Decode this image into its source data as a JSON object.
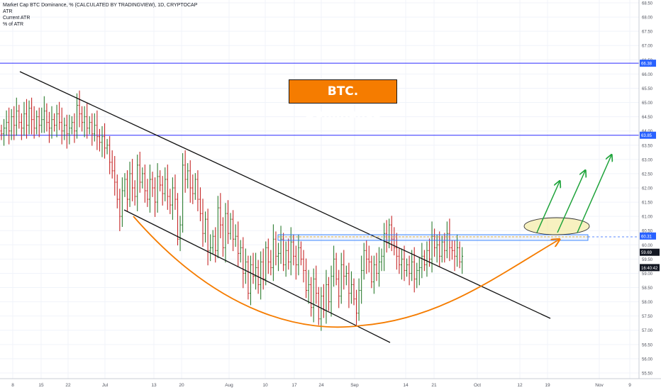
{
  "chart_data": {
    "type": "candlestick",
    "title": "Market Cap BTC Dominance, % (CALCULATED BY TRADINGVIEW), 1D, CRYPTOCAP",
    "legend": [
      "ATR",
      "Current ATR",
      "% of ATR"
    ],
    "annotation": "BTC. Dominance",
    "x_tick_labels": [
      "8",
      "15",
      "22",
      "Jul",
      "13",
      "20",
      "Aug",
      "10",
      "17",
      "24",
      "Sep",
      "14",
      "21",
      "Oct",
      "12",
      "19",
      "Nov",
      "9"
    ],
    "y_tick_labels": [
      "55.50",
      "56.00",
      "56.50",
      "57.00",
      "57.50",
      "58.00",
      "58.50",
      "59.00",
      "59.50",
      "60.00",
      "60.50",
      "61.00",
      "61.50",
      "62.00",
      "62.50",
      "63.00",
      "63.50",
      "64.00",
      "64.50",
      "65.00",
      "65.50",
      "66.00",
      "66.50",
      "67.00",
      "67.50",
      "68.00",
      "68.50"
    ],
    "ylim": [
      55.3,
      68.6
    ],
    "horizontal_levels": [
      {
        "value": 66.38,
        "label": "66.38",
        "color": "#2a2aff"
      },
      {
        "value": 63.85,
        "label": "63.85",
        "color": "#2a2aff"
      },
      {
        "value": 60.31,
        "label": "60.31",
        "color": "#2962ff"
      }
    ],
    "price_labels": [
      {
        "value": 59.69,
        "label": "59.69"
      },
      {
        "value": 59.35,
        "label": "16:40:42"
      }
    ],
    "candle_closes": [
      63.9,
      64.1,
      64.3,
      64.0,
      64.5,
      64.2,
      64.7,
      64.3,
      64.1,
      64.6,
      64.2,
      64.8,
      64.4,
      64.1,
      64.5,
      64.2,
      64.4,
      64.7,
      64.3,
      64.1,
      64.4,
      64.2,
      64.6,
      64.3,
      64.0,
      64.2,
      63.9,
      64.1,
      64.3,
      64.0,
      64.9,
      64.6,
      64.3,
      64.5,
      64.1,
      64.3,
      63.9,
      64.2,
      63.8,
      63.6,
      63.8,
      63.4,
      63.5,
      62.9,
      62.6,
      62.2,
      61.6,
      61.0,
      61.9,
      62.3,
      61.6,
      62.5,
      62.0,
      61.7,
      62.8,
      62.2,
      62.5,
      61.9,
      61.6,
      62.3,
      62.0,
      61.5,
      62.4,
      62.1,
      61.8,
      62.3,
      61.7,
      61.4,
      62.0,
      61.6,
      60.2,
      60.7,
      62.8,
      62.3,
      62.6,
      62.0,
      61.8,
      62.3,
      61.6,
      61.1,
      60.4,
      60.9,
      59.8,
      59.9,
      60.3,
      59.8,
      61.3,
      60.7,
      59.9,
      61.1,
      60.4,
      60.9,
      60.2,
      60.3,
      59.7,
      59.9,
      59.0,
      59.4,
      58.3,
      59.3,
      58.9,
      59.2,
      58.6,
      59.4,
      58.8,
      59.9,
      59.4,
      59.2,
      60.2,
      59.6,
      59.7,
      60.2,
      59.3,
      59.8,
      59.4,
      60.1,
      59.6,
      59.3,
      59.9,
      59.5,
      59.1,
      58.4,
      58.6,
      57.8,
      58.8,
      58.3,
      57.4,
      58.2,
      57.7,
      58.6,
      58.0,
      58.9,
      59.5,
      58.8,
      58.2,
      59.3,
      58.9,
      59.0,
      58.3,
      58.6,
      58.1,
      57.6,
      58.4,
      59.1,
      59.8,
      59.5,
      59.4,
      58.7,
      59.3,
      59.0,
      59.4,
      59.6,
      60.4,
      60.1,
      60.7,
      60.2,
      59.9,
      59.6,
      59.3,
      59.5,
      59.1,
      59.3,
      59.0,
      59.4,
      58.8,
      59.1,
      59.2,
      59.6,
      59.3,
      59.8,
      59.5,
      60.3,
      59.9,
      60.0,
      59.6,
      60.1,
      59.8,
      60.4,
      59.9,
      59.8,
      59.6,
      59.9,
      59.4,
      59.6
    ]
  }
}
